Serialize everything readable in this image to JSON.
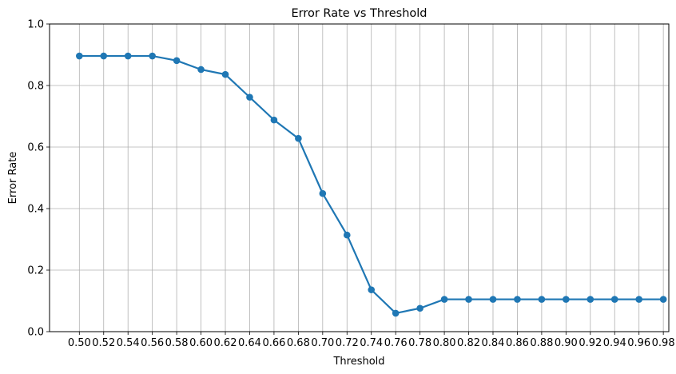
{
  "chart_data": {
    "type": "line",
    "title": "Error Rate vs Threshold",
    "xlabel": "Threshold",
    "ylabel": "Error Rate",
    "ylim": [
      0,
      1
    ],
    "xlim": [
      0.4755,
      0.9845
    ],
    "grid": true,
    "x_ticks": [
      "0.50",
      "0.52",
      "0.54",
      "0.56",
      "0.58",
      "0.60",
      "0.62",
      "0.64",
      "0.66",
      "0.68",
      "0.70",
      "0.72",
      "0.74",
      "0.76",
      "0.78",
      "0.80",
      "0.82",
      "0.84",
      "0.86",
      "0.88",
      "0.90",
      "0.92",
      "0.94",
      "0.96",
      "0.98"
    ],
    "y_ticks": [
      "0.0",
      "0.2",
      "0.4",
      "0.6",
      "0.8",
      "1.0"
    ],
    "series": [
      {
        "color": "#1f77b4",
        "marker": "circle",
        "x": [
          0.5,
          0.52,
          0.54,
          0.56,
          0.58,
          0.6,
          0.62,
          0.64,
          0.66,
          0.68,
          0.7,
          0.72,
          0.74,
          0.76,
          0.78,
          0.8,
          0.82,
          0.84,
          0.86,
          0.88,
          0.9,
          0.92,
          0.94,
          0.96,
          0.98
        ],
        "y": [
          0.896,
          0.896,
          0.896,
          0.896,
          0.881,
          0.852,
          0.836,
          0.762,
          0.688,
          0.628,
          0.449,
          0.314,
          0.136,
          0.06,
          0.076,
          0.105,
          0.105,
          0.105,
          0.105,
          0.105,
          0.105,
          0.105,
          0.105,
          0.105,
          0.105
        ]
      }
    ]
  }
}
